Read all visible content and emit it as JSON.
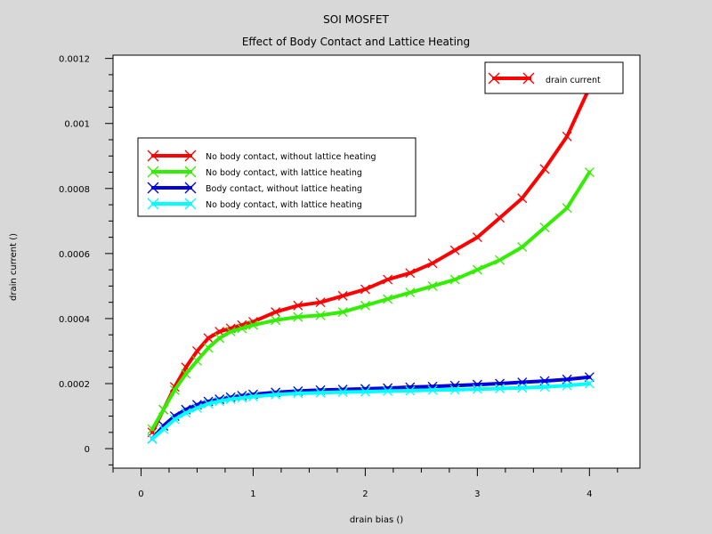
{
  "chart_data": {
    "type": "line",
    "title": "SOI MOSFET",
    "subtitle": "Effect of Body Contact and Lattice Heating",
    "xlabel": "drain bias ()",
    "ylabel": "drain current ()",
    "xlim": [
      -0.25,
      4.45
    ],
    "ylim": [
      -6e-05,
      0.00121
    ],
    "xticks": [
      0,
      1,
      2,
      3,
      4
    ],
    "xtick_labels": [
      "0",
      "1",
      "2",
      "3",
      "4"
    ],
    "yticks": [
      0,
      0.0002,
      0.0004,
      0.0006,
      0.0008,
      0.001,
      0.0012
    ],
    "ytick_labels": [
      "0",
      "0.0002",
      "0.0004",
      "0.0006",
      "0.0008",
      "0.001",
      "0.0012"
    ],
    "grid": false,
    "legend_top_right": {
      "label": "drain current",
      "color": "#ff0000"
    },
    "legend_main": {
      "placement": "upper-left",
      "entries": [
        {
          "label": "No body contact, without lattice heating",
          "color": "#ff0000"
        },
        {
          "label": "No body contact, with lattice heating",
          "color": "#33ee00"
        },
        {
          "label": "Body contact, without lattice heating",
          "color": "#0000dd"
        },
        {
          "label": "No body contact, with lattice heating",
          "color": "#00ffff"
        }
      ]
    },
    "series": [
      {
        "color": "#ff0000",
        "x": [
          0.1,
          0.2,
          0.3,
          0.4,
          0.5,
          0.6,
          0.7,
          0.8,
          0.9,
          1.0,
          1.2,
          1.4,
          1.6,
          1.8,
          2.0,
          2.2,
          2.4,
          2.6,
          2.8,
          3.0,
          3.2,
          3.4,
          3.6,
          3.8,
          4.0
        ],
        "y": [
          5e-05,
          0.00012,
          0.00019,
          0.00025,
          0.0003,
          0.00034,
          0.00036,
          0.00037,
          0.00038,
          0.00039,
          0.00042,
          0.00044,
          0.00045,
          0.00047,
          0.00049,
          0.00052,
          0.00054,
          0.00057,
          0.00061,
          0.00065,
          0.00071,
          0.00077,
          0.00086,
          0.00096,
          0.00111
        ]
      },
      {
        "color": "#33ee00",
        "x": [
          0.1,
          0.2,
          0.3,
          0.4,
          0.5,
          0.6,
          0.7,
          0.8,
          0.9,
          1.0,
          1.2,
          1.4,
          1.6,
          1.8,
          2.0,
          2.2,
          2.4,
          2.6,
          2.8,
          3.0,
          3.2,
          3.4,
          3.6,
          3.8,
          4.0
        ],
        "y": [
          6e-05,
          0.00012,
          0.00018,
          0.00023,
          0.00027,
          0.00031,
          0.00034,
          0.00036,
          0.00037,
          0.00038,
          0.000395,
          0.000405,
          0.00041,
          0.00042,
          0.00044,
          0.00046,
          0.00048,
          0.0005,
          0.00052,
          0.00055,
          0.00058,
          0.00062,
          0.00068,
          0.00074,
          0.00085
        ]
      },
      {
        "color": "#0000dd",
        "x": [
          0.1,
          0.2,
          0.3,
          0.4,
          0.5,
          0.6,
          0.7,
          0.8,
          0.9,
          1.0,
          1.2,
          1.4,
          1.6,
          1.8,
          2.0,
          2.2,
          2.4,
          2.6,
          2.8,
          3.0,
          3.2,
          3.4,
          3.6,
          3.8,
          4.0
        ],
        "y": [
          3e-05,
          7e-05,
          0.0001,
          0.00012,
          0.000135,
          0.000145,
          0.000152,
          0.000158,
          0.000163,
          0.000167,
          0.000173,
          0.000177,
          0.00018,
          0.000182,
          0.000184,
          0.000186,
          0.000189,
          0.000191,
          0.000194,
          0.000197,
          0.0002,
          0.000204,
          0.000208,
          0.000213,
          0.00022
        ]
      },
      {
        "color": "#00ffff",
        "x": [
          0.1,
          0.2,
          0.3,
          0.4,
          0.5,
          0.6,
          0.7,
          0.8,
          0.9,
          1.0,
          1.2,
          1.4,
          1.6,
          1.8,
          2.0,
          2.2,
          2.4,
          2.6,
          2.8,
          3.0,
          3.2,
          3.4,
          3.6,
          3.8,
          4.0
        ],
        "y": [
          3e-05,
          6e-05,
          9e-05,
          0.00011,
          0.000125,
          0.000138,
          0.000146,
          0.000152,
          0.000156,
          0.00016,
          0.000166,
          0.00017,
          0.000172,
          0.000174,
          0.000175,
          0.000177,
          0.000178,
          0.00018,
          0.000181,
          0.000183,
          0.000185,
          0.000187,
          0.00019,
          0.000194,
          0.0002
        ]
      }
    ]
  }
}
